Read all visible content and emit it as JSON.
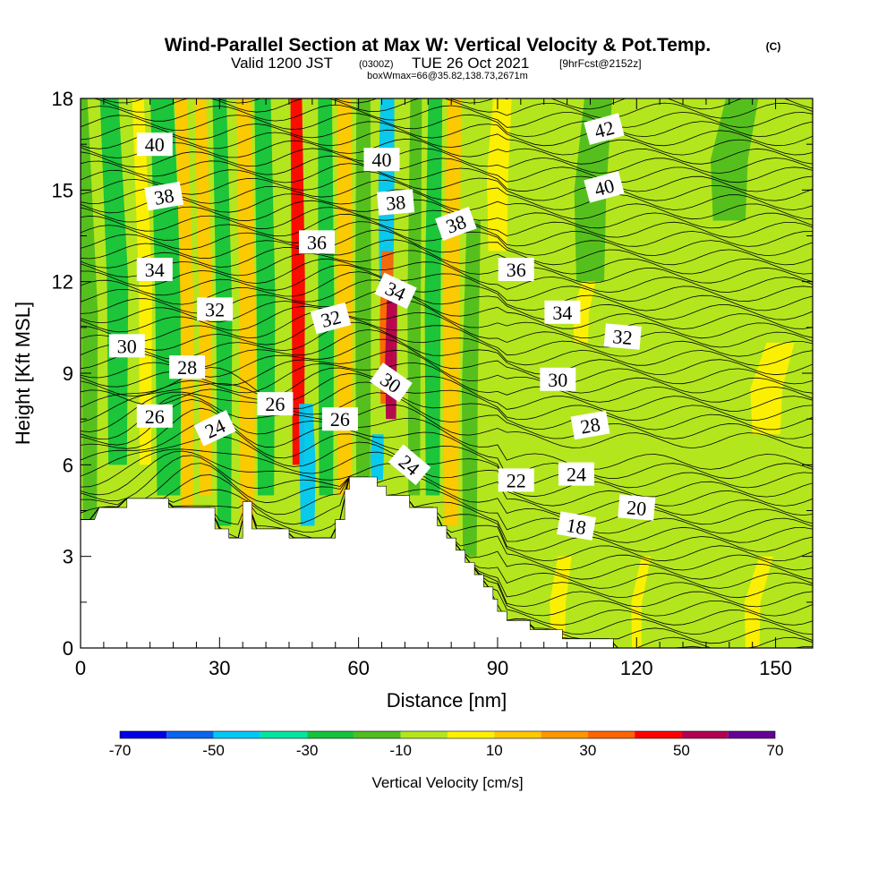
{
  "chart_data": {
    "type": "heatmap",
    "title": "Wind-Parallel Section at Max W: Vertical Velocity & Pot.Temp.",
    "title_mark": "(C)",
    "subtitle_line1": {
      "valid": "Valid 1200 JST",
      "utc": "(0300Z)",
      "date": "TUE 26 Oct 2021",
      "forecast": "[9hrFcst@2152z]"
    },
    "subtitle_line2": "boxWmax=66@35.82,138.73,2671m",
    "xlabel": "Distance [nm]",
    "ylabel": "Height [Kft MSL]",
    "xlim": [
      0,
      158
    ],
    "ylim": [
      0,
      18
    ],
    "xticks": [
      0,
      30,
      60,
      90,
      120,
      150
    ],
    "yticks": [
      0,
      3,
      6,
      9,
      12,
      15,
      18
    ],
    "colorbar": {
      "label": "Vertical Velocity [cm/s]",
      "ticks": [
        -70,
        -50,
        -30,
        -10,
        10,
        30,
        50,
        70
      ],
      "levels": [
        -70,
        -60,
        -50,
        -40,
        -30,
        -20,
        -10,
        0,
        10,
        20,
        30,
        40,
        50,
        60,
        70
      ],
      "colors": [
        "#0000e6",
        "#0a64f0",
        "#00c8f5",
        "#00e6a0",
        "#14c33c",
        "#50be1e",
        "#b4e61e",
        "#fff000",
        "#ffc800",
        "#ff9600",
        "#ff6400",
        "#ff0000",
        "#b40050",
        "#640096"
      ]
    },
    "velocity_features_cm_s": [
      {
        "x": 2,
        "x_width": 3,
        "y_bottom": 4,
        "y_top": 18,
        "w": -15
      },
      {
        "x": 8,
        "x_width": 4,
        "y_bottom": 6,
        "y_top": 18,
        "w": -25
      },
      {
        "x": 14,
        "x_width": 2.5,
        "y_bottom": 6,
        "y_top": 18,
        "w": 5
      },
      {
        "x": 19,
        "x_width": 5,
        "y_bottom": 5,
        "y_top": 18,
        "w": -28
      },
      {
        "x": 23,
        "x_width": 2.5,
        "y_bottom": 4.5,
        "y_top": 18,
        "w": 15
      },
      {
        "x": 27,
        "x_width": 2.5,
        "y_bottom": 5,
        "y_top": 18,
        "w": 18
      },
      {
        "x": 31,
        "x_width": 3,
        "y_bottom": 4,
        "y_top": 18,
        "w": -22
      },
      {
        "x": 36,
        "x_width": 3,
        "y_bottom": 4,
        "y_top": 18,
        "w": 15
      },
      {
        "x": 40,
        "x_width": 3.5,
        "y_bottom": 5,
        "y_top": 18,
        "w": -25
      },
      {
        "x": 47,
        "x_width": 2.5,
        "y_bottom": 6,
        "y_top": 18,
        "w": 42
      },
      {
        "x": 49,
        "x_width": 3,
        "y_bottom": 4,
        "y_top": 8,
        "w": -45
      },
      {
        "x": 53,
        "x_width": 3,
        "y_bottom": 5,
        "y_top": 18,
        "w": -25
      },
      {
        "x": 57,
        "x_width": 3,
        "y_bottom": 5,
        "y_top": 18,
        "w": 15
      },
      {
        "x": 61,
        "x_width": 3,
        "y_bottom": 5.5,
        "y_top": 18,
        "w": -20
      },
      {
        "x": 66,
        "x_width": 3,
        "y_bottom": 12,
        "y_top": 18,
        "w": -45
      },
      {
        "x": 66,
        "x_width": 2.5,
        "y_bottom": 8,
        "y_top": 13,
        "w": 30
      },
      {
        "x": 67,
        "x_width": 2.2,
        "y_bottom": 7.5,
        "y_top": 11.5,
        "w": 55
      },
      {
        "x": 64,
        "x_width": 2.5,
        "y_bottom": 5.5,
        "y_top": 7,
        "w": -48
      },
      {
        "x": 72,
        "x_width": 2.5,
        "y_bottom": 5,
        "y_top": 18,
        "w": -15
      },
      {
        "x": 76,
        "x_width": 3,
        "y_bottom": 5,
        "y_top": 18,
        "w": -25
      },
      {
        "x": 80,
        "x_width": 3,
        "y_bottom": 4,
        "y_top": 18,
        "w": 15
      },
      {
        "x": 84,
        "x_width": 3,
        "y_bottom": 3,
        "y_top": 14,
        "w": -15
      },
      {
        "x": 90,
        "x_width": 4,
        "y_bottom": 13,
        "y_top": 18,
        "w": 5
      },
      {
        "x": 110,
        "x_width": 6,
        "y_bottom": 12,
        "y_top": 18,
        "w": -15
      },
      {
        "x": 140,
        "x_width": 7,
        "y_bottom": 14,
        "y_top": 18,
        "w": -15
      },
      {
        "x": 108,
        "x_width": 3,
        "y_bottom": 10,
        "y_top": 12,
        "w": 5
      },
      {
        "x": 148,
        "x_width": 6,
        "y_bottom": 7,
        "y_top": 10,
        "w": 5
      },
      {
        "x": 103,
        "x_width": 3,
        "y_bottom": 0,
        "y_top": 3,
        "w": 5
      },
      {
        "x": 120,
        "x_width": 2,
        "y_bottom": 0,
        "y_top": 3,
        "w": 5
      },
      {
        "x": 145,
        "x_width": 3,
        "y_bottom": 0,
        "y_top": 3,
        "w": 5
      }
    ],
    "terrain_kft": [
      [
        0,
        4.2
      ],
      [
        3,
        4.2
      ],
      [
        4,
        4.6
      ],
      [
        10,
        4.6
      ],
      [
        10,
        4.9
      ],
      [
        19,
        4.9
      ],
      [
        19,
        4.6
      ],
      [
        29,
        4.6
      ],
      [
        29,
        3.9
      ],
      [
        32,
        3.9
      ],
      [
        32,
        3.6
      ],
      [
        35,
        3.6
      ],
      [
        35,
        4.8
      ],
      [
        37,
        4.8
      ],
      [
        37,
        3.9
      ],
      [
        45,
        3.9
      ],
      [
        45,
        3.6
      ],
      [
        55,
        3.6
      ],
      [
        55,
        4.2
      ],
      [
        57,
        4.2
      ],
      [
        57,
        5.2
      ],
      [
        58,
        5.2
      ],
      [
        58,
        5.6
      ],
      [
        64,
        5.6
      ],
      [
        64,
        5.3
      ],
      [
        66,
        5.3
      ],
      [
        66,
        5.0
      ],
      [
        71,
        5.0
      ],
      [
        71,
        4.6
      ],
      [
        77,
        4.6
      ],
      [
        77,
        4.0
      ],
      [
        79,
        4.0
      ],
      [
        79,
        3.6
      ],
      [
        81,
        3.6
      ],
      [
        81,
        3.2
      ],
      [
        83,
        3.2
      ],
      [
        83,
        2.8
      ],
      [
        85,
        2.8
      ],
      [
        85,
        2.4
      ],
      [
        87,
        2.4
      ],
      [
        87,
        2.0
      ],
      [
        89,
        2.0
      ],
      [
        89,
        1.6
      ],
      [
        90,
        1.6
      ],
      [
        90,
        1.2
      ],
      [
        92,
        1.2
      ],
      [
        92,
        0.9
      ],
      [
        97,
        0.9
      ],
      [
        97,
        0.6
      ],
      [
        104,
        0.6
      ],
      [
        104,
        0.3
      ],
      [
        115,
        0.3
      ],
      [
        115,
        0
      ],
      [
        158,
        0
      ]
    ],
    "theta_contours_labels": [
      {
        "value": "40",
        "x": 16,
        "y": 16.5,
        "rot": 0
      },
      {
        "value": "38",
        "x": 18,
        "y": 14.8,
        "rot": 10
      },
      {
        "value": "34",
        "x": 16,
        "y": 12.4,
        "rot": 0
      },
      {
        "value": "32",
        "x": 29,
        "y": 11.1,
        "rot": 0
      },
      {
        "value": "30",
        "x": 10,
        "y": 9.9,
        "rot": 0
      },
      {
        "value": "28",
        "x": 23,
        "y": 9.2,
        "rot": 0
      },
      {
        "value": "26",
        "x": 16,
        "y": 7.6,
        "rot": 0
      },
      {
        "value": "24",
        "x": 29,
        "y": 7.2,
        "rot": 25
      },
      {
        "value": "26",
        "x": 42,
        "y": 8.0,
        "rot": 0
      },
      {
        "value": "26",
        "x": 56,
        "y": 7.5,
        "rot": 0
      },
      {
        "value": "36",
        "x": 51,
        "y": 13.3,
        "rot": 0
      },
      {
        "value": "32",
        "x": 54,
        "y": 10.8,
        "rot": 15
      },
      {
        "value": "40",
        "x": 65,
        "y": 16.0,
        "rot": 0
      },
      {
        "value": "38",
        "x": 68,
        "y": 14.6,
        "rot": 5
      },
      {
        "value": "34",
        "x": 68,
        "y": 11.7,
        "rot": -25
      },
      {
        "value": "30",
        "x": 67,
        "y": 8.7,
        "rot": -35
      },
      {
        "value": "24",
        "x": 71,
        "y": 6.0,
        "rot": -40
      },
      {
        "value": "38",
        "x": 81,
        "y": 13.9,
        "rot": 20
      },
      {
        "value": "36",
        "x": 94,
        "y": 12.4,
        "rot": 0
      },
      {
        "value": "34",
        "x": 104,
        "y": 11.0,
        "rot": 0
      },
      {
        "value": "32",
        "x": 117,
        "y": 10.2,
        "rot": -5
      },
      {
        "value": "30",
        "x": 103,
        "y": 8.8,
        "rot": 0
      },
      {
        "value": "28",
        "x": 110,
        "y": 7.3,
        "rot": 10
      },
      {
        "value": "24",
        "x": 107,
        "y": 5.7,
        "rot": 0
      },
      {
        "value": "22",
        "x": 94,
        "y": 5.5,
        "rot": 0
      },
      {
        "value": "20",
        "x": 120,
        "y": 4.6,
        "rot": -5
      },
      {
        "value": "18",
        "x": 107,
        "y": 4.0,
        "rot": -10
      },
      {
        "value": "42",
        "x": 113,
        "y": 17.0,
        "rot": 15
      },
      {
        "value": "40",
        "x": 113,
        "y": 15.1,
        "rot": 15
      }
    ]
  }
}
